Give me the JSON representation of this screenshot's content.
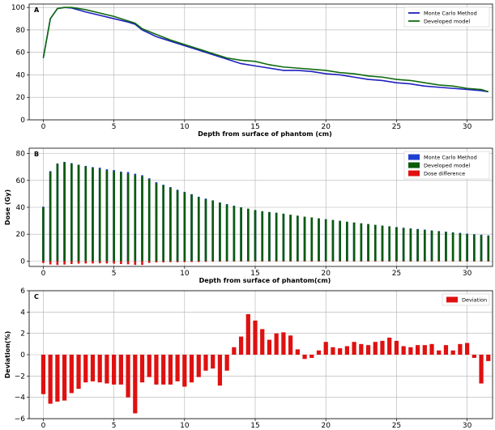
{
  "chart_data": [
    {
      "panel": "A",
      "type": "line",
      "xlabel": "Depth from surface of phantom (cm)",
      "ylabel": "",
      "xlim": [
        -1,
        31.8
      ],
      "ylim": [
        0,
        103
      ],
      "xticks": [
        0,
        5,
        10,
        15,
        20,
        25,
        30
      ],
      "yticks": [
        0,
        20,
        40,
        60,
        80,
        100
      ],
      "grid": true,
      "legend": "top-right",
      "series": [
        {
          "name": "Monte Carlo Method",
          "color": "#1f1fbf",
          "x": [
            0,
            0.5,
            1,
            1.5,
            2,
            3,
            4,
            5,
            6,
            6.5,
            7,
            8,
            9,
            10,
            11,
            12,
            13,
            14,
            15,
            16,
            17,
            18,
            19,
            20,
            21,
            22,
            23,
            24,
            25,
            26,
            27,
            28,
            29,
            30,
            31,
            31.5
          ],
          "values": [
            55,
            90,
            99,
            100,
            99.5,
            96,
            93,
            90,
            87,
            85,
            80,
            74,
            70,
            66,
            62,
            58,
            54,
            50,
            48,
            46,
            44,
            44,
            43,
            41,
            40,
            38,
            36,
            35,
            33,
            32,
            30,
            29,
            28,
            27,
            26,
            25
          ]
        },
        {
          "name": "Developed model",
          "color": "#0f6b0f",
          "x": [
            0,
            0.5,
            1,
            1.5,
            2,
            3,
            4,
            5,
            6,
            6.5,
            7,
            8,
            9,
            10,
            11,
            12,
            13,
            14,
            15,
            16,
            17,
            18,
            19,
            20,
            21,
            22,
            23,
            24,
            25,
            26,
            27,
            28,
            29,
            30,
            31,
            31.5
          ],
          "values": [
            55,
            90,
            99,
            100,
            100,
            98,
            95,
            92,
            88,
            86,
            81,
            76,
            71,
            67,
            63,
            59,
            55,
            53,
            52,
            49,
            47,
            46,
            45,
            44,
            42,
            41,
            39,
            38,
            36,
            35,
            33,
            31,
            30,
            28,
            27,
            25
          ]
        }
      ]
    },
    {
      "panel": "B",
      "type": "bar",
      "xlabel": "Depth from surface of phantom(cm)",
      "ylabel": "Dose (Gy)",
      "xlim": [
        -1,
        31.8
      ],
      "ylim": [
        -4,
        84
      ],
      "xticks": [
        0,
        5,
        10,
        15,
        20,
        25,
        30
      ],
      "yticks": [
        0,
        20,
        40,
        60,
        80
      ],
      "grid": true,
      "legend": "top-right",
      "x_start": 0,
      "x_step": 0.5,
      "series": [
        {
          "name": "Monte Carlo Method",
          "color": "#1f3fd0",
          "values": [
            40.5,
            66.9,
            72.6,
            73.8,
            72.9,
            71.7,
            70.8,
            69.9,
            69.5,
            68.3,
            67.7,
            66.6,
            66.3,
            65.0,
            63.9,
            61.6,
            58.7,
            56.8,
            55.1,
            53.1,
            51.5,
            49.8,
            47.9,
            46.5,
            45.2,
            43.6,
            42.4,
            41.2,
            39.9,
            38.8,
            37.6,
            37.1,
            36.4,
            35.9,
            34.9,
            34.1,
            33.4,
            32.9,
            32.4,
            31.6,
            31.0,
            30.4,
            29.8,
            29.1,
            28.6,
            28.0,
            27.5,
            26.9,
            26.4,
            25.9,
            25.3,
            24.8,
            24.3,
            23.9,
            23.4,
            22.8,
            22.3,
            21.9,
            21.4,
            21.0,
            20.4,
            20.0,
            19.6,
            19.1
          ]
        },
        {
          "name": "Developed model",
          "color": "#0a5a0a",
          "values": [
            40,
            66.5,
            72.5,
            73.5,
            72.5,
            71.5,
            70.5,
            69.5,
            68.5,
            67.5,
            66.8,
            66,
            65,
            64,
            63,
            61,
            58,
            56.5,
            54.5,
            52.5,
            51,
            49.5,
            47.5,
            46,
            45,
            43.5,
            42,
            41,
            40,
            39,
            38,
            37,
            36.5,
            36,
            35.3,
            34.5,
            33.8,
            33,
            32.5,
            31.8,
            31.2,
            30.6,
            30,
            29.3,
            28.7,
            28.1,
            27.5,
            26.9,
            26.3,
            25.7,
            25.1,
            24.6,
            24.1,
            23.6,
            23.1,
            22.6,
            22.1,
            21.6,
            21.1,
            20.6,
            20.1,
            19.6,
            19.2,
            18.8
          ]
        },
        {
          "name": "Dose difference",
          "color": "#e01010",
          "values": [
            -1.5,
            -2.5,
            -2.9,
            -2.6,
            -2.2,
            -1.9,
            -1.8,
            -1.8,
            -1.7,
            -1.8,
            -1.9,
            -2.2,
            -2.4,
            -2.9,
            -2.9,
            -1.4,
            -1.0,
            -1.0,
            -0.8,
            -0.9,
            -0.8,
            -0.7,
            -0.7,
            -0.6,
            -0.5,
            -0.5,
            -0.4,
            -0.4,
            -0.3,
            -0.2,
            -0.2,
            -0.1,
            -0.1,
            -0.1,
            -0.1,
            -0.1,
            -0.1,
            -0.1,
            -0.1,
            -0.1,
            -0.1,
            -0.1,
            -0.1,
            -0.1,
            -0.1,
            -0.1,
            -0.1,
            -0.1,
            -0.1,
            -0.1,
            -0.1,
            -0.1,
            -0.1,
            -0.1,
            -0.1,
            -0.1,
            -0.1,
            -0.1,
            -0.1,
            -0.1,
            -0.1,
            -0.1,
            -0.1,
            -0.1
          ]
        }
      ]
    },
    {
      "panel": "C",
      "type": "bar",
      "xlabel": "Depth from surface of phantom (cm)",
      "ylabel": "Deviation(%)",
      "xlim": [
        -1,
        31.8
      ],
      "ylim": [
        -6,
        6
      ],
      "xticks": [
        0,
        5,
        10,
        15,
        20,
        25,
        30
      ],
      "yticks": [
        -6,
        -4,
        -2,
        0,
        2,
        4,
        6
      ],
      "grid": true,
      "legend": "top-right",
      "x_start": 0,
      "x_step": 0.5,
      "series": [
        {
          "name": "Deviation",
          "color": "#e01010",
          "values": [
            -3.7,
            -4.6,
            -4.4,
            -4.3,
            -3.6,
            -3.2,
            -2.6,
            -2.5,
            -2.6,
            -2.7,
            -2.8,
            -2.8,
            -4.0,
            -5.5,
            -2.6,
            -2.1,
            -2.8,
            -2.8,
            -2.8,
            -2.5,
            -3.0,
            -2.6,
            -2.1,
            -1.5,
            -1.3,
            -2.9,
            -1.5,
            0.7,
            1.7,
            3.8,
            3.2,
            2.4,
            1.4,
            2.0,
            2.1,
            1.8,
            0.5,
            -0.4,
            -0.3,
            0.4,
            1.2,
            0.7,
            0.6,
            0.8,
            1.2,
            1.0,
            0.9,
            1.2,
            1.3,
            1.6,
            1.3,
            0.8,
            0.7,
            0.9,
            0.9,
            1.0,
            0.4,
            0.9,
            0.4,
            1.0,
            1.1,
            -0.3,
            -2.7,
            -0.6
          ]
        }
      ]
    }
  ]
}
